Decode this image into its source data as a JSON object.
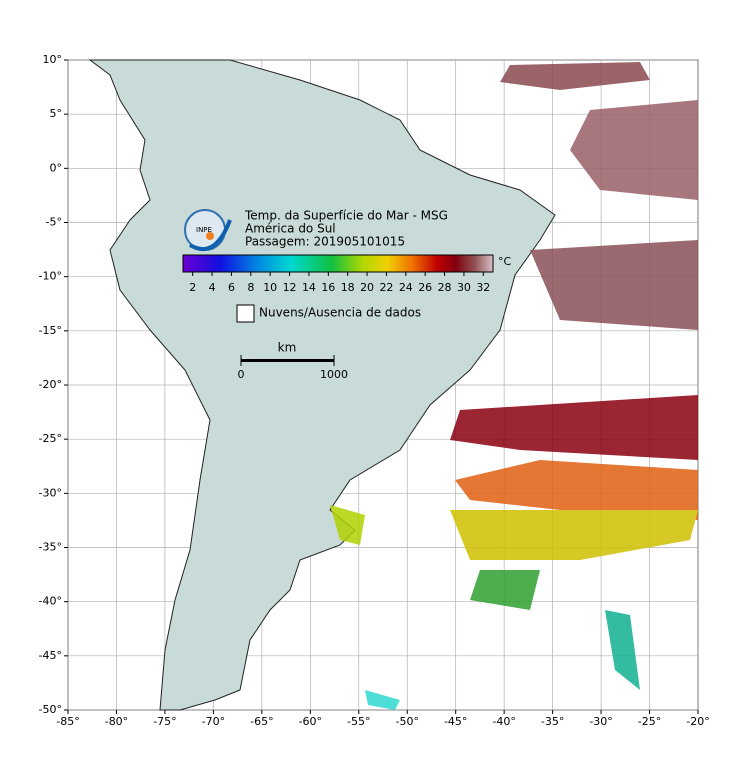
{
  "map": {
    "title": "Temp. da Superfície do Mar - MSG",
    "region": "América do Sul",
    "pass": "Passagem: 201905101015",
    "logo": "INPE",
    "xlim": [
      -85,
      -20
    ],
    "ylim": [
      -50,
      10
    ],
    "lon_ticks": [
      {
        "value": -85,
        "label": "-85°"
      },
      {
        "value": -80,
        "label": "-80°"
      },
      {
        "value": -75,
        "label": "-75°"
      },
      {
        "value": -70,
        "label": "-70°"
      },
      {
        "value": -65,
        "label": "-65°"
      },
      {
        "value": -60,
        "label": "-60°"
      },
      {
        "value": -55,
        "label": "-55°"
      },
      {
        "value": -50,
        "label": "-50°"
      },
      {
        "value": -45,
        "label": "-45°"
      },
      {
        "value": -40,
        "label": "-40°"
      },
      {
        "value": -35,
        "label": "-35°"
      },
      {
        "value": -30,
        "label": "-30°"
      },
      {
        "value": -25,
        "label": "-25°"
      },
      {
        "value": -20,
        "label": "-20°"
      }
    ],
    "lat_ticks": [
      {
        "value": 10,
        "label": "10°"
      },
      {
        "value": 5,
        "label": "5°"
      },
      {
        "value": 0,
        "label": "0°"
      },
      {
        "value": -5,
        "label": "-5°"
      },
      {
        "value": -10,
        "label": "-10°"
      },
      {
        "value": -15,
        "label": "-15°"
      },
      {
        "value": -20,
        "label": "-20°"
      },
      {
        "value": -25,
        "label": "-25°"
      },
      {
        "value": -30,
        "label": "-30°"
      },
      {
        "value": -35,
        "label": "-35°"
      },
      {
        "value": -40,
        "label": "-40°"
      },
      {
        "value": -45,
        "label": "-45°"
      },
      {
        "value": -50,
        "label": "-50°"
      }
    ],
    "colorbar": {
      "unit": "°C",
      "lim": [
        1,
        33
      ],
      "ticks": [
        2,
        4,
        6,
        8,
        10,
        12,
        14,
        16,
        18,
        20,
        22,
        24,
        26,
        28,
        30,
        32
      ]
    },
    "legend": "Nuvens/Ausencia de dados",
    "scale": {
      "unit": "km",
      "ticks": [
        0,
        1000
      ]
    }
  }
}
